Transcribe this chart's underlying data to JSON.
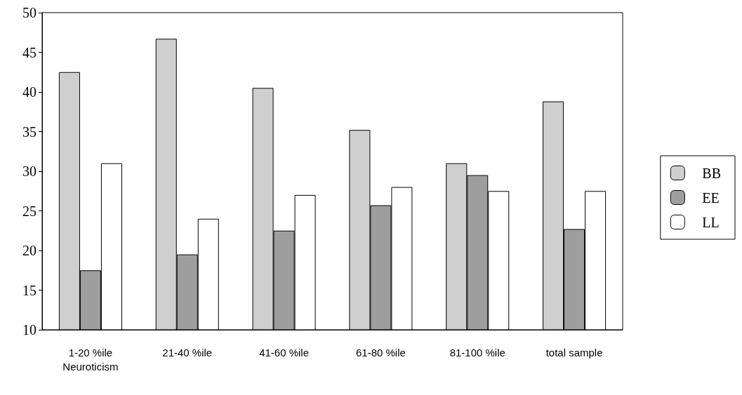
{
  "chart_data": {
    "type": "bar",
    "categories": [
      "1-20 %ile\nNeuroticism",
      "21-40 %ile",
      "41-60 %ile",
      "61-80 %ile",
      "81-100 %ile",
      "total sample"
    ],
    "series": [
      {
        "name": "BB",
        "color": "#cfcfcf",
        "values": [
          42.5,
          46.7,
          40.5,
          35.2,
          31,
          38.8
        ]
      },
      {
        "name": "EE",
        "color": "#9e9e9e",
        "values": [
          17.5,
          19.5,
          22.5,
          25.7,
          29.5,
          22.7
        ]
      },
      {
        "name": "LL",
        "color": "#ffffff",
        "values": [
          31,
          24,
          27,
          28,
          27.5,
          27.5
        ]
      }
    ],
    "ylim": [
      10,
      50
    ],
    "yticks": [
      10,
      15,
      20,
      25,
      30,
      35,
      40,
      45,
      50
    ],
    "grid": false,
    "legend": "right"
  }
}
